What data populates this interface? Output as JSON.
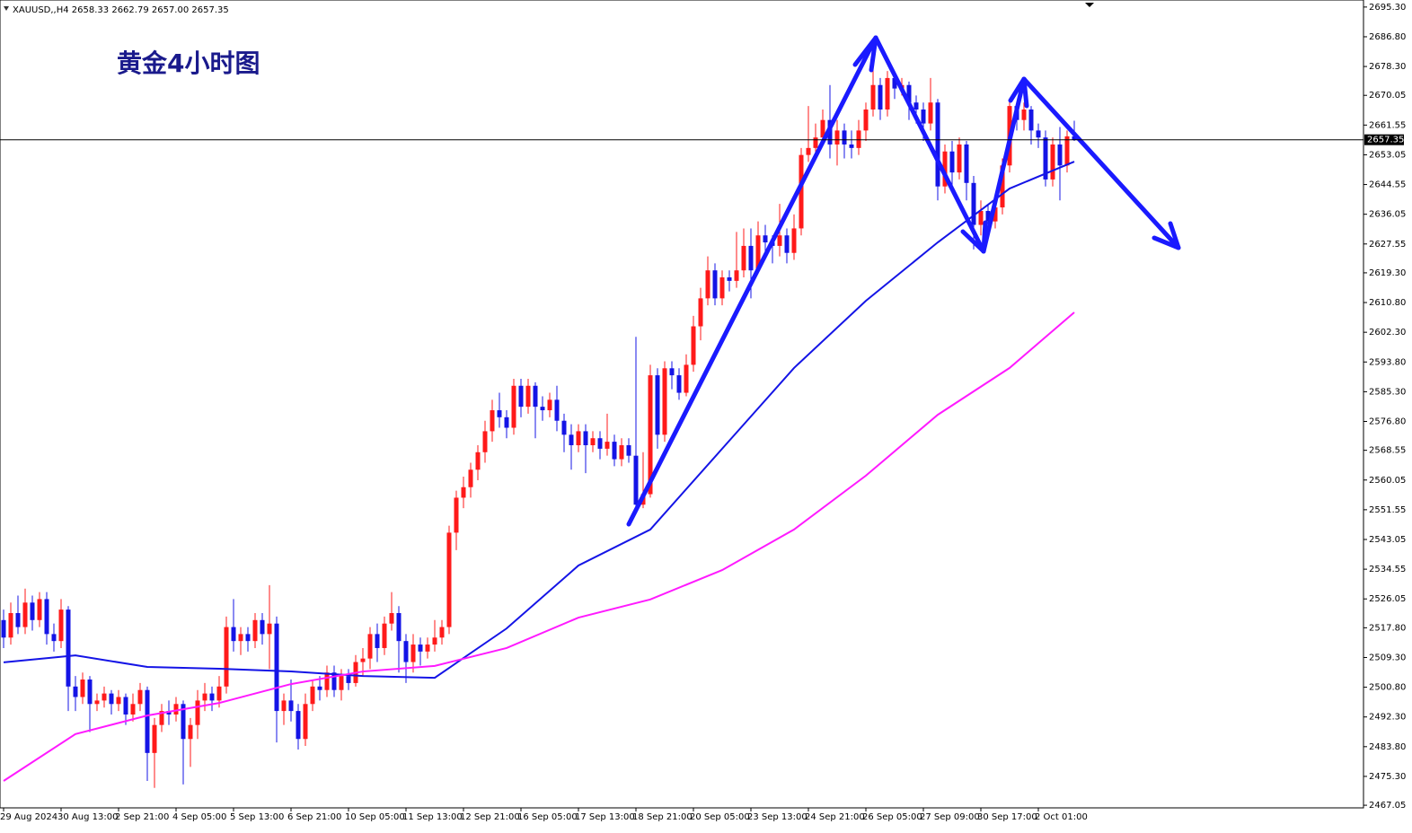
{
  "chart_data": {
    "type": "candlestick",
    "header": "XAUUSD,,H4  2658.33 2662.79 2657.00 2657.35",
    "title": "黄金4小时图",
    "up_color": "#ff1a1a",
    "down_color": "#1414e6",
    "categories": [
      "29 Aug 2024",
      null,
      null,
      null,
      null,
      null,
      null,
      null,
      "30 Aug 13:00",
      null,
      null,
      null,
      null,
      null,
      null,
      null,
      "2 Sep 21:00",
      null,
      null,
      null,
      null,
      null,
      null,
      null,
      "4 Sep 05:00",
      null,
      null,
      null,
      null,
      null,
      null,
      null,
      "5 Sep 13:00",
      null,
      null,
      null,
      null,
      null,
      null,
      null,
      "6 Sep 21:00",
      null,
      null,
      null,
      null,
      null,
      null,
      null,
      "10 Sep 05:00",
      null,
      null,
      null,
      null,
      null,
      null,
      null,
      "11 Sep 13:00",
      null,
      null,
      null,
      null,
      null,
      null,
      null,
      "12 Sep 21:00",
      null,
      null,
      null,
      null,
      null,
      null,
      null,
      "16 Sep 05:00",
      null,
      null,
      null,
      null,
      null,
      null,
      null,
      "17 Sep 13:00",
      null,
      null,
      null,
      null,
      null,
      null,
      null,
      "18 Sep 21:00",
      null,
      null,
      null,
      null,
      null,
      null,
      null,
      "20 Sep 05:00",
      null,
      null,
      null,
      null,
      null,
      null,
      null,
      "23 Sep 13:00",
      null,
      null,
      null,
      null,
      null,
      null,
      null,
      "24 Sep 21:00",
      null,
      null,
      null,
      null,
      null,
      null,
      null,
      "26 Sep 05:00",
      null,
      null,
      null,
      null,
      null,
      null,
      null,
      "27 Sep 09:00",
      null,
      null,
      null,
      null,
      null,
      null,
      null,
      "30 Sep 17:00",
      null,
      null,
      null,
      null,
      null,
      null,
      null,
      "2 Oct 01:00",
      null,
      null,
      null,
      null,
      null
    ],
    "open": [
      2520,
      2515,
      2522,
      2518,
      2525,
      2520,
      2526,
      2516,
      2514,
      2523,
      2501,
      2498,
      2503,
      2496,
      2497,
      2499,
      2496,
      2498,
      2493,
      2496,
      2500,
      2482,
      2490,
      2494,
      2493,
      2496,
      2486,
      2490,
      2497,
      2499,
      2497,
      2501,
      2518,
      2514,
      2516,
      2514,
      2520,
      2516,
      2519,
      2494,
      2497,
      2494,
      2486,
      2496,
      2501,
      2500,
      2505,
      2500,
      2504,
      2502,
      2508,
      2509,
      2516,
      2512,
      2519,
      2522,
      2514,
      2508,
      2513,
      2511,
      2513,
      2515,
      2518,
      2545,
      2555,
      2558,
      2563,
      2568,
      2574,
      2580,
      2578,
      2575,
      2587,
      2581,
      2587,
      2581,
      2580,
      2583,
      2577,
      2573,
      2570,
      2574,
      2570,
      2572,
      2569,
      2571,
      2566,
      2570,
      2567,
      2553,
      2556,
      2590,
      2573,
      2592,
      2590,
      2585,
      2593,
      2604,
      2612,
      2620,
      2612,
      2618,
      2617,
      2620,
      2627,
      2620,
      2630,
      2628,
      2627,
      2630,
      2625,
      2632,
      2653,
      2655,
      2658,
      2663,
      2656,
      2660,
      2656,
      2655,
      2660,
      2666,
      2673,
      2666,
      2675,
      2672,
      2673,
      2668,
      2666,
      2662,
      2668,
      2644,
      2654,
      2648,
      2656,
      2645,
      2633,
      2637,
      2634,
      2638,
      2650,
      2667,
      2663,
      2666,
      2660,
      2658,
      2646,
      2656,
      2650,
      2658.33
    ],
    "high": [
      2523,
      2525,
      2527,
      2529,
      2527,
      2528,
      2528,
      2519,
      2526,
      2524,
      2504,
      2505,
      2504,
      2499,
      2501,
      2500,
      2500,
      2499,
      2499,
      2502,
      2501,
      2492,
      2496,
      2497,
      2498,
      2497,
      2492,
      2500,
      2502,
      2501,
      2504,
      2521,
      2526,
      2518,
      2518,
      2522,
      2522,
      2530,
      2521,
      2499,
      2503,
      2496,
      2499,
      2503,
      2504,
      2507,
      2507,
      2506,
      2506,
      2510,
      2512,
      2518,
      2519,
      2521,
      2528,
      2524,
      2516,
      2516,
      2515,
      2515,
      2520,
      2520,
      2547,
      2557,
      2561,
      2565,
      2570,
      2577,
      2583,
      2585,
      2580,
      2589,
      2589,
      2589,
      2588,
      2584,
      2585,
      2587,
      2579,
      2576,
      2576,
      2576,
      2574,
      2574,
      2579,
      2573,
      2572,
      2572,
      2601,
      2568,
      2593,
      2592,
      2594,
      2594,
      2592,
      2596,
      2607,
      2615,
      2624,
      2622,
      2620,
      2620,
      2631,
      2632,
      2632,
      2634,
      2633,
      2630,
      2639,
      2632,
      2636,
      2655,
      2667,
      2662,
      2666,
      2673,
      2663,
      2662,
      2660,
      2663,
      2668,
      2680,
      2675,
      2677,
      2676,
      2675,
      2674,
      2670,
      2668,
      2675,
      2669,
      2656,
      2657,
      2658,
      2657,
      2647,
      2640,
      2639,
      2641,
      2652,
      2669,
      2668,
      2668,
      2667,
      2662,
      2660,
      2658,
      2661,
      2660,
      2662.79
    ],
    "low": [
      2512,
      2513,
      2516,
      2516,
      2517,
      2518,
      2513,
      2511,
      2512,
      2494,
      2494,
      2496,
      2488,
      2494,
      2495,
      2493,
      2494,
      2490,
      2491,
      2494,
      2474,
      2472,
      2488,
      2490,
      2491,
      2473,
      2478,
      2486,
      2494,
      2494,
      2495,
      2499,
      2511,
      2510,
      2511,
      2512,
      2513,
      2506,
      2485,
      2490,
      2491,
      2483,
      2484,
      2494,
      2497,
      2498,
      2498,
      2497,
      2500,
      2501,
      2504,
      2506,
      2508,
      2510,
      2517,
      2505,
      2502,
      2505,
      2507,
      2509,
      2511,
      2513,
      2516,
      2540,
      2552,
      2555,
      2560,
      2565,
      2571,
      2575,
      2572,
      2573,
      2578,
      2579,
      2572,
      2577,
      2578,
      2574,
      2568,
      2563,
      2568,
      2562,
      2568,
      2566,
      2567,
      2564,
      2564,
      2565,
      2551,
      2552,
      2555,
      2569,
      2571,
      2586,
      2583,
      2584,
      2591,
      2600,
      2610,
      2610,
      2610,
      2614,
      2615,
      2618,
      2612,
      2619,
      2625,
      2622,
      2624,
      2622,
      2623,
      2630,
      2651,
      2652,
      2656,
      2652,
      2650,
      2652,
      2652,
      2653,
      2657,
      2664,
      2663,
      2664,
      2669,
      2670,
      2663,
      2662,
      2657,
      2660,
      2640,
      2642,
      2644,
      2646,
      2640,
      2626,
      2630,
      2631,
      2632,
      2636,
      2648,
      2660,
      2660,
      2656,
      2655,
      2644,
      2644,
      2640,
      2648,
      2657
    ],
    "close": [
      2515,
      2522,
      2518,
      2525,
      2520,
      2526,
      2516,
      2514,
      2523,
      2501,
      2498,
      2503,
      2496,
      2497,
      2499,
      2496,
      2498,
      2493,
      2496,
      2500,
      2482,
      2490,
      2494,
      2493,
      2496,
      2486,
      2490,
      2497,
      2499,
      2497,
      2501,
      2518,
      2514,
      2516,
      2514,
      2520,
      2516,
      2519,
      2494,
      2497,
      2494,
      2486,
      2496,
      2501,
      2500,
      2505,
      2500,
      2504,
      2502,
      2508,
      2509,
      2516,
      2512,
      2519,
      2522,
      2514,
      2508,
      2513,
      2511,
      2513,
      2515,
      2518,
      2545,
      2555,
      2558,
      2563,
      2568,
      2574,
      2580,
      2578,
      2575,
      2587,
      2581,
      2587,
      2581,
      2580,
      2583,
      2577,
      2573,
      2570,
      2574,
      2570,
      2572,
      2569,
      2571,
      2566,
      2570,
      2567,
      2553,
      2556,
      2590,
      2573,
      2592,
      2590,
      2585,
      2593,
      2604,
      2612,
      2620,
      2612,
      2618,
      2617,
      2620,
      2627,
      2620,
      2630,
      2628,
      2627,
      2630,
      2625,
      2632,
      2653,
      2655,
      2658,
      2663,
      2656,
      2660,
      2656,
      2655,
      2660,
      2666,
      2673,
      2666,
      2675,
      2672,
      2673,
      2668,
      2666,
      2662,
      2668,
      2644,
      2654,
      2648,
      2656,
      2645,
      2633,
      2637,
      2634,
      2638,
      2650,
      2667,
      2663,
      2666,
      2660,
      2658,
      2646,
      2656,
      2650,
      2658.33,
      2657.35
    ],
    "lines": [
      {
        "color": "#1414e6",
        "x": [
          0,
          10,
          20,
          30,
          40,
          50,
          60,
          70,
          80,
          90,
          100,
          110,
          120,
          130,
          140,
          149
        ],
        "values": [
          2507.9,
          2509.9,
          2506.6,
          2506.1,
          2505.3,
          2504.0,
          2503.5,
          2517.6,
          2535.6,
          2545.9,
          2569.0,
          2592.1,
          2611.3,
          2628.0,
          2643.4,
          2651.1
        ]
      },
      {
        "color": "#ff1aff",
        "x": [
          0,
          10,
          20,
          30,
          40,
          50,
          60,
          70,
          80,
          90,
          100,
          110,
          120,
          130,
          140,
          149
        ],
        "values": [
          2474.0,
          2487.4,
          2492.7,
          2496.3,
          2501.7,
          2505.3,
          2506.9,
          2512.0,
          2520.7,
          2525.9,
          2534.3,
          2545.9,
          2561.3,
          2578.7,
          2592.1,
          2608.0
        ]
      }
    ],
    "price_line": {
      "value": 2657.35,
      "label": "2657.35"
    },
    "ylim": [
      2466.3,
      2696.8
    ],
    "yticks": [
      {
        "value": 2695.3,
        "label": "2695.30"
      },
      {
        "value": 2686.8,
        "label": "2686.80"
      },
      {
        "value": 2678.3,
        "label": "2678.30"
      },
      {
        "value": 2670.05,
        "label": "2670.05"
      },
      {
        "value": 2661.55,
        "label": "2661.55"
      },
      {
        "value": 2653.05,
        "label": "2653.05"
      },
      {
        "value": 2644.55,
        "label": "2644.55"
      },
      {
        "value": 2636.05,
        "label": "2636.05"
      },
      {
        "value": 2627.55,
        "label": "2627.55"
      },
      {
        "value": 2619.3,
        "label": "2619.30"
      },
      {
        "value": 2610.8,
        "label": "2610.80"
      },
      {
        "value": 2602.3,
        "label": "2602.30"
      },
      {
        "value": 2593.8,
        "label": "2593.80"
      },
      {
        "value": 2585.3,
        "label": "2585.30"
      },
      {
        "value": 2576.8,
        "label": "2576.80"
      },
      {
        "value": 2568.55,
        "label": "2568.55"
      },
      {
        "value": 2560.05,
        "label": "2560.05"
      },
      {
        "value": 2551.55,
        "label": "2551.55"
      },
      {
        "value": 2543.05,
        "label": "2543.05"
      },
      {
        "value": 2534.55,
        "label": "2534.55"
      },
      {
        "value": 2526.05,
        "label": "2526.05"
      },
      {
        "value": 2517.8,
        "label": "2517.80"
      },
      {
        "value": 2509.3,
        "label": "2509.30"
      },
      {
        "value": 2500.8,
        "label": "2500.80"
      },
      {
        "value": 2492.3,
        "label": "2492.30"
      },
      {
        "value": 2483.8,
        "label": "2483.80"
      },
      {
        "value": 2475.3,
        "label": "2475.30"
      },
      {
        "value": 2467.05,
        "label": "2467.05"
      }
    ]
  }
}
